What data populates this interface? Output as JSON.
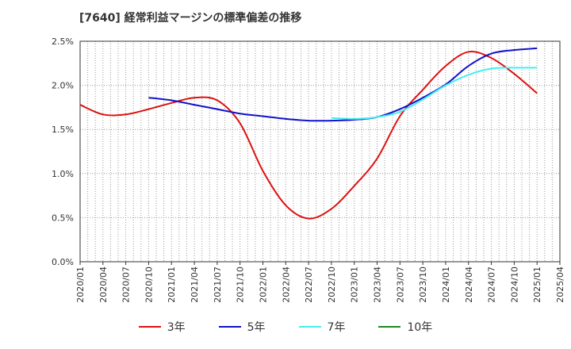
{
  "chart_data": {
    "type": "line",
    "title": "[7640]  経常利益マージンの標準偏差の推移",
    "xlabel": "",
    "ylabel": "",
    "x": [
      "2020/01",
      "2020/04",
      "2020/07",
      "2020/10",
      "2021/01",
      "2021/04",
      "2021/07",
      "2021/10",
      "2022/01",
      "2022/04",
      "2022/07",
      "2022/10",
      "2023/01",
      "2023/04",
      "2023/07",
      "2023/10",
      "2024/01",
      "2024/04",
      "2024/07",
      "2024/10",
      "2025/01",
      "2025/04"
    ],
    "y_ticks": [
      "0.0%",
      "0.5%",
      "1.0%",
      "1.5%",
      "2.0%",
      "2.5%"
    ],
    "ylim": [
      0,
      2.5
    ],
    "grid": true,
    "legend_position": "bottom",
    "series": [
      {
        "name": "3年",
        "color": "#dd1111",
        "values": [
          1.78,
          1.67,
          1.67,
          1.73,
          1.8,
          1.86,
          1.83,
          1.57,
          1.03,
          0.64,
          0.49,
          0.6,
          0.86,
          1.17,
          1.65,
          1.95,
          2.22,
          2.38,
          2.31,
          2.13,
          1.91,
          null
        ]
      },
      {
        "name": "5年",
        "color": "#1111cc",
        "values": [
          null,
          null,
          null,
          1.86,
          1.83,
          1.78,
          1.73,
          1.68,
          1.65,
          1.62,
          1.6,
          1.6,
          1.61,
          1.64,
          1.73,
          1.86,
          2.01,
          2.22,
          2.36,
          2.4,
          2.42,
          null
        ]
      },
      {
        "name": "7年",
        "color": "#44eeee",
        "values": [
          null,
          null,
          null,
          null,
          null,
          null,
          null,
          null,
          null,
          null,
          null,
          1.63,
          1.62,
          1.64,
          1.7,
          1.84,
          2.0,
          2.12,
          2.19,
          2.2,
          2.2,
          null
        ]
      },
      {
        "name": "10年",
        "color": "#228822",
        "values": [
          null,
          null,
          null,
          null,
          null,
          null,
          null,
          null,
          null,
          null,
          null,
          null,
          null,
          null,
          null,
          null,
          null,
          null,
          null,
          null,
          null,
          null
        ]
      }
    ]
  }
}
